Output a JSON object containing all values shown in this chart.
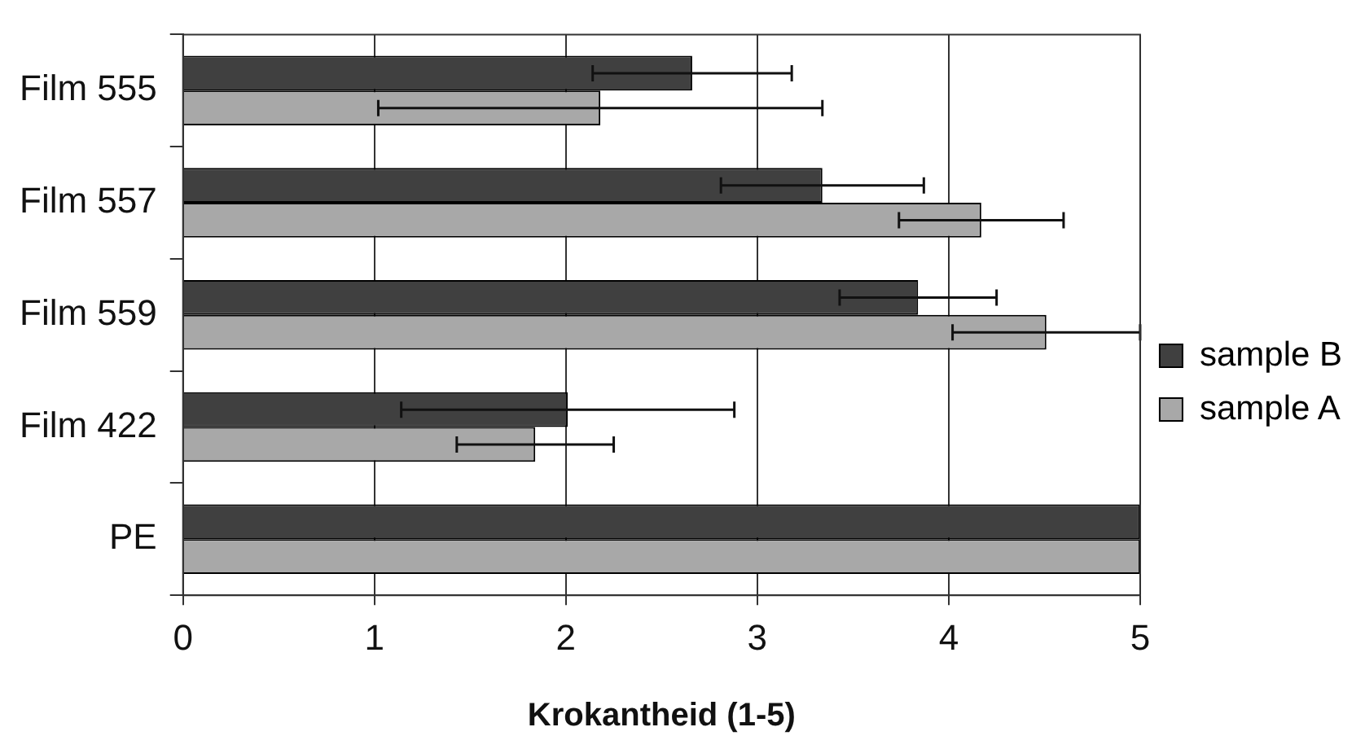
{
  "chart_data": {
    "type": "bar",
    "orientation": "horizontal",
    "xlabel": "Krokantheid (1-5)",
    "categories": [
      "Film 555",
      "Film 557",
      "Film 559",
      "Film 422",
      "PE"
    ],
    "series": [
      {
        "name": "sample B",
        "color": "#404040",
        "values": [
          2.66,
          3.34,
          3.84,
          2.01,
          5
        ],
        "errors": [
          0.52,
          0.53,
          0.41,
          0.87,
          null
        ]
      },
      {
        "name": "sample A",
        "color": "#a8a8a8",
        "values": [
          2.18,
          4.17,
          4.51,
          1.84,
          5
        ],
        "errors": [
          1.16,
          0.43,
          0.49,
          0.41,
          null
        ]
      }
    ],
    "xlim": [
      0,
      5
    ],
    "xticks": [
      0,
      1,
      2,
      3,
      4,
      5
    ],
    "grid": "x",
    "legend": "right"
  }
}
